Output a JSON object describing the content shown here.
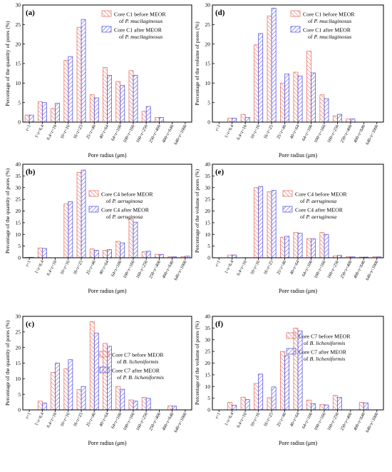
{
  "x_axis_label": "Pore radius (μm)",
  "categories": [
    "r<1",
    "1<r<6.4",
    "6.4<r<10",
    "10<r<16",
    "16<r<25",
    "25<r<40",
    "40<r<64",
    "64<r<100",
    "100<r<160",
    "160<r<250",
    "250<r<400",
    "400<r<640",
    "640<r<1000"
  ],
  "colors": {
    "before": "#e8736a",
    "after": "#5b5be0"
  },
  "chart_data": [
    {
      "type": "bar",
      "panel": "(a)",
      "ylabel": "Percentage of the quantity of pores (%)",
      "xlabel": "Pore radius (μm)",
      "ylim": [
        0,
        30
      ],
      "yticks": [
        0,
        5,
        10,
        15,
        20,
        25,
        30
      ],
      "legend": "top-right",
      "series": [
        {
          "legend": [
            "Core C1 before MEOR",
            "of P. mucilaginosus"
          ],
          "values": [
            1.8,
            5.2,
            3.5,
            15.8,
            24.3,
            7.0,
            14.0,
            10.4,
            13.2,
            2.8,
            1.2,
            0,
            0
          ]
        },
        {
          "legend": [
            "Core C1 after MEOR",
            "of P. mucilaginosus"
          ],
          "values": [
            1.8,
            5.0,
            4.8,
            16.8,
            26.3,
            6.2,
            12.0,
            9.4,
            12.0,
            4.0,
            1.2,
            0,
            0
          ]
        }
      ]
    },
    {
      "type": "bar",
      "panel": "(d)",
      "ylabel": "Percentage of the volume of pores (%)",
      "xlabel": "Pore radius (μm)",
      "ylim": [
        0,
        30
      ],
      "yticks": [
        0,
        5,
        10,
        15,
        20,
        25,
        30
      ],
      "legend": "top-right",
      "series": [
        {
          "legend": [
            "Core C1 before MEOR",
            "of P. mucilaginosus"
          ],
          "values": [
            0,
            1.0,
            2.0,
            19.8,
            27.2,
            10.0,
            12.8,
            18.2,
            7.0,
            1.6,
            0.8,
            0,
            0
          ]
        },
        {
          "legend": [
            "Core C1 after MEOR",
            "of P. mucilaginosus"
          ],
          "values": [
            0,
            1.0,
            1.2,
            22.7,
            29.2,
            12.3,
            11.8,
            12.6,
            6.0,
            2.0,
            0.8,
            0,
            0
          ]
        }
      ]
    },
    {
      "type": "bar",
      "panel": "(b)",
      "ylabel": "Percentage of the quantity of pores (%)",
      "xlabel": "Pore radius (μm)",
      "ylim": [
        0,
        40
      ],
      "yticks": [
        0,
        5,
        10,
        15,
        20,
        25,
        30,
        35,
        40
      ],
      "legend": "middle-right",
      "series": [
        {
          "legend": [
            "Core C4 before MEOR",
            "of P. aeruginosa"
          ],
          "values": [
            0.2,
            4.2,
            0,
            23.0,
            36.5,
            3.8,
            3.2,
            7.0,
            16.5,
            2.6,
            1.5,
            0.4,
            0.5
          ]
        },
        {
          "legend": [
            "Core C4 after MEOR",
            "of P. aeruginosa"
          ],
          "values": [
            0.2,
            4.0,
            0,
            24.0,
            37.5,
            3.2,
            3.5,
            6.4,
            15.2,
            2.8,
            1.4,
            0.4,
            0.7
          ]
        }
      ]
    },
    {
      "type": "bar",
      "panel": "(e)",
      "ylabel": "Percentage of the volume of pores (%)",
      "xlabel": "Pore radius (μm)",
      "ylim": [
        0,
        40
      ],
      "yticks": [
        0,
        5,
        10,
        15,
        20,
        25,
        30,
        35,
        40
      ],
      "legend": "middle-right",
      "series": [
        {
          "legend": [
            "Core C4 before MEOR",
            "of P. aeruginosa"
          ],
          "values": [
            0,
            1.2,
            0,
            30.0,
            28.2,
            8.8,
            10.8,
            8.2,
            10.8,
            0.8,
            0.5,
            0.3,
            0.4
          ]
        },
        {
          "legend": [
            "Core C4 after MEOR",
            "of P. aeruginosa"
          ],
          "values": [
            0,
            1.2,
            0,
            30.5,
            28.8,
            9.2,
            10.5,
            8.1,
            10.0,
            1.0,
            0.4,
            0.3,
            0.4
          ]
        }
      ]
    },
    {
      "type": "bar",
      "panel": "(c)",
      "ylabel": "Percentage of the quantity of pores (%)",
      "xlabel": "Pore radius (μm)",
      "ylim": [
        0,
        30
      ],
      "yticks": [
        0,
        5,
        10,
        15,
        20,
        25,
        30
      ],
      "legend": "right",
      "series": [
        {
          "legend": [
            "Core C7 before MEOR",
            "of B. licheniformis"
          ],
          "values": [
            0,
            2.8,
            12.0,
            13.2,
            6.5,
            28.3,
            21.3,
            7.5,
            3.2,
            4.0,
            0,
            1.3,
            0
          ]
        },
        {
          "legend": [
            "Core C7 after MEOR",
            "of P. B. licheniformis"
          ],
          "values": [
            0,
            2.2,
            15.0,
            16.1,
            7.5,
            24.6,
            20.4,
            6.6,
            2.8,
            3.7,
            0,
            1.2,
            0
          ]
        }
      ]
    },
    {
      "type": "bar",
      "panel": "(f)",
      "ylabel": "Percentage of the volume of pores (%)",
      "xlabel": "Pore radius (μm)",
      "ylim": [
        0,
        40
      ],
      "yticks": [
        0,
        5,
        10,
        15,
        20,
        25,
        30,
        35,
        40
      ],
      "legend": "top-right",
      "series": [
        {
          "legend": [
            "Core C7 before MEOR",
            "of B. licheniformis"
          ],
          "values": [
            0,
            3.2,
            5.4,
            11.3,
            5.2,
            25.0,
            35.0,
            4.2,
            2.3,
            6.2,
            0,
            3.2,
            0
          ]
        },
        {
          "legend": [
            "Core C7 after MEOR",
            "of B. licheniformis"
          ],
          "values": [
            0,
            2.0,
            4.4,
            15.3,
            9.8,
            23.2,
            33.8,
            2.6,
            2.1,
            5.3,
            0,
            3.0,
            0
          ]
        }
      ]
    }
  ]
}
